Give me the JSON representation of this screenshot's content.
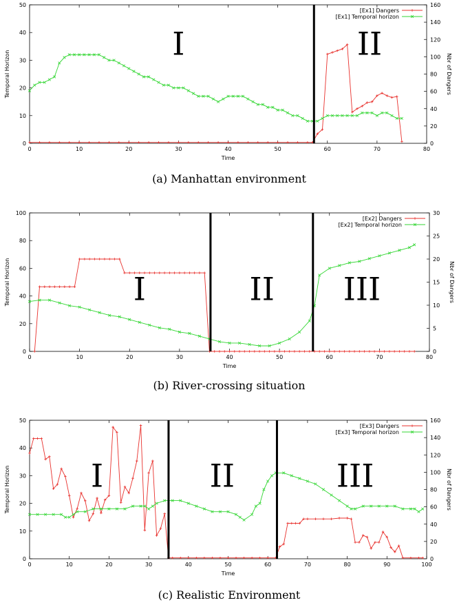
{
  "chart_data": [
    {
      "type": "line",
      "caption": "(a) Manhattan environment",
      "xlabel": "Time",
      "ylabel": "Temporal Horizon",
      "y2label": "Nbr of Dangers",
      "xlim": [
        0,
        80
      ],
      "ylim": [
        0,
        50
      ],
      "y2lim": [
        0,
        160
      ],
      "xticks": [
        0,
        10,
        20,
        30,
        40,
        50,
        60,
        70,
        80
      ],
      "yticks": [
        0,
        10,
        20,
        30,
        40,
        50
      ],
      "y2ticks": [
        0,
        20,
        40,
        60,
        80,
        100,
        120,
        140,
        160
      ],
      "legend_position": "top-right",
      "dividers": [
        57.3
      ],
      "regions": [
        {
          "label": "I",
          "x": 30,
          "y": 36
        },
        {
          "label": "II",
          "x": 68.5,
          "y": 36
        }
      ],
      "series": [
        {
          "name": "[Ex1] Dangers",
          "axis": "right",
          "color": "#e8302c",
          "marker": "plus",
          "x": [
            0,
            2,
            4,
            6,
            8,
            10,
            12,
            14,
            16,
            18,
            20,
            22,
            24,
            26,
            28,
            30,
            32,
            34,
            36,
            38,
            40,
            42,
            44,
            46,
            48,
            50,
            52,
            54,
            56,
            57,
            58,
            59,
            60,
            61,
            62,
            63,
            64,
            65,
            66,
            67,
            68,
            69,
            70,
            71,
            72,
            73,
            74,
            75
          ],
          "y": [
            1,
            1,
            1,
            1,
            1,
            1,
            1,
            1,
            1,
            1,
            1,
            1,
            1,
            1,
            1,
            1,
            1,
            1,
            1,
            1,
            1,
            1,
            1,
            1,
            1,
            1,
            1,
            1,
            1,
            1,
            11,
            16,
            103,
            105,
            107,
            109,
            114,
            36,
            40,
            43,
            47,
            48,
            55,
            58,
            55,
            53,
            54,
            2
          ]
        },
        {
          "name": "[Ex1] Temporal horizon",
          "axis": "left",
          "color": "#33d633",
          "marker": "x",
          "x": [
            0,
            1,
            2,
            3,
            4,
            5,
            6,
            7,
            8,
            9,
            10,
            11,
            12,
            13,
            14,
            15,
            16,
            17,
            18,
            19,
            20,
            21,
            22,
            23,
            24,
            25,
            26,
            27,
            28,
            29,
            30,
            31,
            32,
            33,
            34,
            35,
            36,
            37,
            38,
            39,
            40,
            41,
            42,
            43,
            44,
            45,
            46,
            47,
            48,
            49,
            50,
            51,
            52,
            53,
            54,
            55,
            56,
            57,
            58,
            59,
            60,
            61,
            62,
            63,
            64,
            65,
            66,
            67,
            68,
            69,
            70,
            71,
            72,
            73,
            74,
            75
          ],
          "y": [
            19,
            21,
            22,
            22,
            23,
            24,
            29,
            31,
            32,
            32,
            32,
            32,
            32,
            32,
            32,
            31,
            30,
            30,
            29,
            28,
            27,
            26,
            25,
            24,
            24,
            23,
            22,
            21,
            21,
            20,
            20,
            20,
            19,
            18,
            17,
            17,
            17,
            16,
            15,
            16,
            17,
            17,
            17,
            17,
            16,
            15,
            14,
            14,
            13,
            13,
            12,
            12,
            11,
            10,
            10,
            9,
            8,
            8,
            8,
            9,
            10,
            10,
            10,
            10,
            10,
            10,
            10,
            11,
            11,
            11,
            10,
            11,
            11,
            10,
            9,
            9
          ]
        }
      ]
    },
    {
      "type": "line",
      "caption": "(b) River-crossing situation",
      "xlabel": "Time",
      "ylabel": "Temporal Horizon",
      "y2label": "Nbr of Dangers",
      "xlim": [
        0,
        80
      ],
      "ylim": [
        0,
        100
      ],
      "y2lim": [
        0,
        30
      ],
      "xticks": [
        0,
        10,
        20,
        30,
        40,
        50,
        60,
        70,
        80
      ],
      "yticks": [
        0,
        20,
        40,
        60,
        80,
        100
      ],
      "y2ticks": [
        0,
        5,
        10,
        15,
        20,
        25,
        30
      ],
      "legend_position": "top-right",
      "dividers": [
        36.2,
        56.7
      ],
      "regions": [
        {
          "label": "I",
          "x": 22,
          "y": 45
        },
        {
          "label": "II",
          "x": 46.5,
          "y": 45
        },
        {
          "label": "III",
          "x": 66.5,
          "y": 45
        }
      ],
      "series": [
        {
          "name": "[Ex2] Dangers",
          "axis": "right",
          "color": "#e8302c",
          "marker": "plus",
          "x": [
            1,
            2,
            3,
            4,
            5,
            6,
            7,
            8,
            9,
            10,
            11,
            12,
            13,
            14,
            15,
            16,
            17,
            18,
            19,
            20,
            21,
            22,
            23,
            24,
            25,
            26,
            27,
            28,
            29,
            30,
            31,
            32,
            33,
            34,
            35,
            36,
            37,
            38,
            39,
            40,
            41,
            42,
            43,
            44,
            45,
            46,
            47,
            48,
            49,
            50,
            51,
            52,
            53,
            54,
            55,
            56,
            57,
            58,
            59,
            60,
            61,
            62,
            63,
            64,
            65,
            66,
            67,
            68,
            69,
            70,
            71,
            72,
            73,
            74,
            75,
            76,
            77
          ],
          "y": [
            0,
            14,
            14,
            14,
            14,
            14,
            14,
            14,
            14,
            20,
            20,
            20,
            20,
            20,
            20,
            20,
            20,
            20,
            17,
            17,
            17,
            17,
            17,
            17,
            17,
            17,
            17,
            17,
            17,
            17,
            17,
            17,
            17,
            17,
            17,
            0,
            0,
            0,
            0,
            0,
            0,
            0,
            0,
            0,
            0,
            0,
            0,
            0,
            0,
            0,
            0,
            0,
            0,
            0,
            0,
            0,
            0,
            0,
            0,
            0,
            0,
            0,
            0,
            0,
            0,
            0,
            0,
            0,
            0,
            0,
            0,
            0,
            0,
            0,
            0,
            0,
            0
          ]
        },
        {
          "name": "[Ex2] Temporal horizon",
          "axis": "left",
          "color": "#33d633",
          "marker": "x",
          "x": [
            0,
            2,
            4,
            6,
            8,
            10,
            12,
            14,
            16,
            18,
            20,
            22,
            24,
            26,
            28,
            30,
            32,
            34,
            36,
            38,
            40,
            42,
            44,
            46,
            48,
            50,
            52,
            54,
            56,
            57,
            58,
            60,
            62,
            64,
            66,
            68,
            70,
            72,
            74,
            76,
            77
          ],
          "y": [
            36,
            37,
            37,
            35,
            33,
            32,
            30,
            28,
            26,
            25,
            23,
            21,
            19,
            17,
            16,
            14,
            13,
            11,
            9,
            7,
            6,
            6,
            5,
            4,
            4,
            6,
            9,
            14,
            22,
            33,
            55,
            60,
            62,
            64,
            65,
            67,
            69,
            71,
            73,
            75,
            77
          ]
        }
      ]
    },
    {
      "type": "line",
      "caption": "(c) Realistic Environment",
      "xlabel": "Time",
      "ylabel": "Temporal Horizon",
      "y2label": "Nbr of Dangers",
      "xlim": [
        0,
        100
      ],
      "ylim": [
        0,
        50
      ],
      "y2lim": [
        0,
        160
      ],
      "xticks": [
        0,
        10,
        20,
        30,
        40,
        50,
        60,
        70,
        80,
        90,
        100
      ],
      "yticks": [
        0,
        10,
        20,
        30,
        40,
        50
      ],
      "y2ticks": [
        0,
        20,
        40,
        60,
        80,
        100,
        120,
        140,
        160
      ],
      "legend_position": "top-right",
      "dividers": [
        35,
        62.3
      ],
      "regions": [
        {
          "label": "I",
          "x": 17,
          "y": 30
        },
        {
          "label": "II",
          "x": 48.5,
          "y": 30
        },
        {
          "label": "III",
          "x": 82,
          "y": 30
        }
      ],
      "series": [
        {
          "name": "[Ex3] Dangers",
          "axis": "right",
          "color": "#e8302c",
          "marker": "plus",
          "x": [
            0,
            1,
            2,
            3,
            4,
            5,
            6,
            7,
            8,
            9,
            10,
            11,
            12,
            13,
            14,
            15,
            16,
            17,
            18,
            19,
            20,
            21,
            22,
            23,
            24,
            25,
            26,
            27,
            28,
            29,
            30,
            31,
            32,
            33,
            34,
            35,
            36,
            38,
            40,
            42,
            44,
            46,
            48,
            50,
            52,
            54,
            56,
            58,
            60,
            62,
            63,
            64,
            65,
            66,
            67,
            68,
            69,
            70,
            72,
            74,
            76,
            78,
            80,
            81,
            82,
            83,
            84,
            85,
            86,
            87,
            88,
            89,
            90,
            91,
            92,
            93,
            94,
            96,
            98,
            99
          ],
          "y": [
            122,
            139,
            139,
            139,
            115,
            118,
            81,
            86,
            104,
            95,
            73,
            48,
            58,
            76,
            67,
            44,
            52,
            70,
            53,
            68,
            73,
            152,
            146,
            65,
            83,
            76,
            93,
            113,
            154,
            33,
            99,
            113,
            27,
            35,
            52,
            1,
            1,
            1,
            1,
            1,
            1,
            1,
            1,
            1,
            1,
            1,
            1,
            1,
            1,
            1,
            14,
            17,
            41,
            41,
            41,
            41,
            46,
            46,
            46,
            46,
            46,
            47,
            47,
            46,
            19,
            19,
            27,
            25,
            12,
            19,
            19,
            31,
            25,
            13,
            8,
            15,
            1,
            1,
            1,
            1
          ]
        },
        {
          "name": "[Ex3] Temporal horizon",
          "axis": "left",
          "color": "#33d633",
          "marker": "x",
          "x": [
            0,
            2,
            4,
            6,
            8,
            9,
            10,
            11,
            12,
            14,
            16,
            18,
            20,
            22,
            24,
            26,
            28,
            29,
            30,
            31,
            32,
            34,
            36,
            38,
            40,
            42,
            44,
            46,
            48,
            50,
            52,
            53,
            54,
            56,
            57,
            58,
            59,
            60,
            61,
            62,
            64,
            66,
            68,
            70,
            72,
            74,
            76,
            78,
            80,
            81,
            82,
            84,
            86,
            88,
            90,
            92,
            94,
            96,
            97,
            98,
            99
          ],
          "y": [
            16,
            16,
            16,
            16,
            16,
            15,
            15,
            16,
            17,
            17,
            18,
            18,
            18,
            18,
            18,
            19,
            19,
            19,
            18,
            19,
            20,
            21,
            21,
            21,
            20,
            19,
            18,
            17,
            17,
            17,
            16,
            15,
            14,
            16,
            19,
            20,
            25,
            28,
            30,
            31,
            31,
            30,
            29,
            28,
            27,
            25,
            23,
            21,
            19,
            18,
            18,
            19,
            19,
            19,
            19,
            19,
            18,
            18,
            18,
            17,
            18
          ]
        }
      ]
    }
  ]
}
